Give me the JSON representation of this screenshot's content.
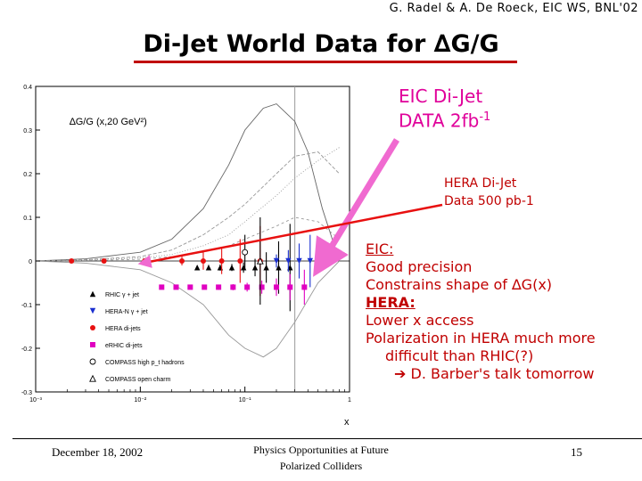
{
  "header": {
    "credit": "G. Radel & A. De Roeck, EIC WS, BNL'02"
  },
  "slide": {
    "title": "Di-Jet World Data for ∆G/G"
  },
  "callouts": {
    "eic_line1": "EIC Di-Jet",
    "eic_line2": "DATA 2fb",
    "eic_exp": "-1",
    "hera_line1": "HERA Di-Jet",
    "hera_line2": "Data 500 pb-1"
  },
  "notes": {
    "eic_heading": "EIC:",
    "eic_1": "Good precision",
    "eic_2": "Constrains shape of ∆G(x)",
    "hera_heading": "HERA:",
    "hera_1": "Lower x access",
    "hera_2": "Polarization in HERA much more",
    "hera_3": "difficult than RHIC(?)",
    "hera_4": "D. Barber's talk tomorrow",
    "arrow_glyph": "➔"
  },
  "footer": {
    "date": "December 18, 2002",
    "title_line1": "Physics Opportunities at Future",
    "title_line2": "Polarized Colliders",
    "page": "15"
  },
  "colors": {
    "title_red": "#c00000",
    "pink_arrow": "#f06ad0",
    "eric": "#e000c0",
    "hera": "#e81010",
    "rhic": "#000000",
    "heran": "#1a2fd0"
  },
  "chart_data": {
    "type": "scatter",
    "title": "∆G/G (x,20 GeV²)",
    "xlabel": "x",
    "ylabel": "",
    "xscale": "log",
    "xlim": [
      0.001,
      1
    ],
    "ylim": [
      -0.3,
      0.4
    ],
    "x_tick_labels": [
      "10⁻³",
      "10⁻²",
      "10⁻¹",
      "1"
    ],
    "y_ticks": [
      0.4,
      0.3,
      0.2,
      0.1,
      0,
      -0.1,
      -0.2,
      -0.3
    ],
    "y_tick_labels": [
      "0.4",
      "0.3",
      "0.2",
      "0.1",
      "0",
      "-0.1",
      "-0.2",
      "-0.3"
    ],
    "legend": {
      "placement": "bottom-left",
      "entries": [
        "RHIC γ + jet",
        "HERA-N γ + jet",
        "HERA di-jets",
        "eRHIC di-jets",
        "COMPASS high p_t hadrons",
        "COMPASS open charm"
      ]
    },
    "series": [
      {
        "name": "RHIC γ + jet",
        "marker": "triangle-up",
        "color": "#000000",
        "x": [
          0.035,
          0.045,
          0.058,
          0.075,
          0.097,
          0.125,
          0.16,
          0.21,
          0.27
        ],
        "y": [
          -0.015,
          -0.015,
          -0.015,
          -0.015,
          -0.015,
          -0.015,
          -0.015,
          -0.015,
          -0.015
        ],
        "err": [
          0.005,
          0.006,
          0.007,
          0.008,
          0.012,
          0.02,
          0.035,
          0.06,
          0.1
        ]
      },
      {
        "name": "HERA-N γ + jet",
        "marker": "triangle-down",
        "color": "#1a2fd0",
        "x": [
          0.2,
          0.26,
          0.33,
          0.42
        ],
        "y": [
          0.0,
          0.0,
          0.0,
          0.0
        ],
        "err": [
          0.015,
          0.025,
          0.04,
          0.06
        ]
      },
      {
        "name": "HERA di-jets",
        "marker": "circle",
        "color": "#e81010",
        "x": [
          0.0022,
          0.0045,
          0.011,
          0.025,
          0.04,
          0.06,
          0.09,
          0.14
        ],
        "y": [
          0.0,
          0.0,
          0.0,
          0.0,
          0.0,
          0.0,
          0.0,
          0.0
        ],
        "err": [
          0.002,
          0.003,
          0.006,
          0.01,
          0.02,
          0.03,
          0.05,
          0.08
        ]
      },
      {
        "name": "eRHIC di-jets",
        "marker": "square",
        "color": "#e000c0",
        "x": [
          0.016,
          0.022,
          0.03,
          0.041,
          0.056,
          0.077,
          0.105,
          0.145,
          0.2,
          0.27,
          0.37
        ],
        "y": [
          -0.06,
          -0.06,
          -0.06,
          -0.06,
          -0.06,
          -0.06,
          -0.06,
          -0.06,
          -0.06,
          -0.06,
          -0.06
        ],
        "err": [
          0.004,
          0.004,
          0.005,
          0.005,
          0.006,
          0.007,
          0.01,
          0.015,
          0.02,
          0.03,
          0.04
        ]
      },
      {
        "name": "COMPASS high p_t hadrons",
        "marker": "open-circle",
        "color": "#000000",
        "x": [
          0.1
        ],
        "y": [
          0.02
        ],
        "err": [
          0.04
        ]
      },
      {
        "name": "COMPASS open charm",
        "marker": "open-triangle",
        "color": "#000000",
        "x": [
          0.14
        ],
        "y": [
          0.0
        ],
        "err": [
          0.1
        ]
      }
    ],
    "curves": [
      {
        "name": "model-1",
        "x": [
          0.001,
          0.003,
          0.01,
          0.02,
          0.04,
          0.07,
          0.1,
          0.15,
          0.2,
          0.3,
          0.4,
          0.55,
          0.8
        ],
        "y": [
          0.0,
          0.005,
          0.02,
          0.05,
          0.12,
          0.22,
          0.3,
          0.35,
          0.36,
          0.32,
          0.25,
          0.12,
          0.0
        ]
      },
      {
        "name": "model-2",
        "x": [
          0.001,
          0.003,
          0.01,
          0.02,
          0.04,
          0.07,
          0.1,
          0.2,
          0.3,
          0.5,
          0.8
        ],
        "y": [
          0.0,
          0.003,
          0.01,
          0.025,
          0.06,
          0.1,
          0.13,
          0.2,
          0.24,
          0.25,
          0.2
        ]
      },
      {
        "name": "model-3",
        "x": [
          0.001,
          0.003,
          0.01,
          0.02,
          0.04,
          0.07,
          0.1,
          0.2,
          0.3,
          0.5,
          0.8
        ],
        "y": [
          0.0,
          0.002,
          0.007,
          0.015,
          0.035,
          0.06,
          0.09,
          0.15,
          0.19,
          0.23,
          0.26
        ]
      },
      {
        "name": "model-4",
        "x": [
          0.001,
          0.003,
          0.01,
          0.02,
          0.04,
          0.07,
          0.1,
          0.15,
          0.2,
          0.3,
          0.5,
          0.8
        ],
        "y": [
          0.0,
          -0.005,
          -0.02,
          -0.05,
          -0.1,
          -0.17,
          -0.2,
          -0.22,
          -0.2,
          -0.14,
          -0.05,
          0.0
        ]
      },
      {
        "name": "model-5",
        "x": [
          0.001,
          0.003,
          0.01,
          0.02,
          0.04,
          0.07,
          0.1,
          0.2,
          0.3,
          0.5,
          0.8
        ],
        "y": [
          0.0,
          0.001,
          0.004,
          0.01,
          0.02,
          0.035,
          0.05,
          0.08,
          0.1,
          0.09,
          0.05
        ]
      }
    ]
  }
}
